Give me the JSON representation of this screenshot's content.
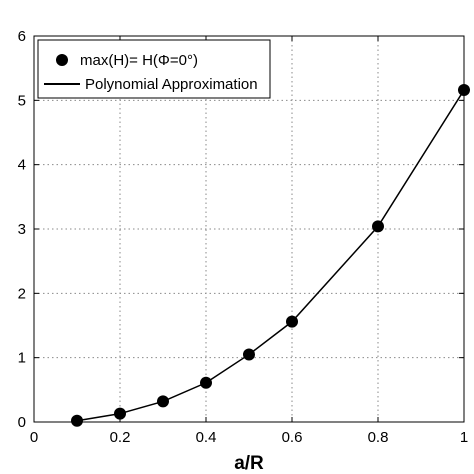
{
  "chart_data": {
    "type": "line",
    "title": "",
    "xlabel": "a/R",
    "ylabel": "",
    "xlim": [
      0,
      1
    ],
    "ylim": [
      0,
      6
    ],
    "xticks": [
      0,
      0.2,
      0.4,
      0.6,
      0.8,
      1
    ],
    "xtick_labels": [
      "0",
      "0.2",
      "0.4",
      "0.6",
      "0.8",
      "1"
    ],
    "yticks": [
      0,
      1,
      2,
      3,
      4,
      5,
      6
    ],
    "ytick_labels": [
      "0",
      "1",
      "2",
      "3",
      "4",
      "5",
      "6"
    ],
    "grid": true,
    "legend_position": "top-left",
    "series": [
      {
        "name": "max(H)= H(Φ=0°)",
        "style": "markers",
        "marker": "filled-circle",
        "color": "#000000",
        "x": [
          0.1,
          0.2,
          0.3,
          0.4,
          0.5,
          0.6,
          0.8,
          1.0
        ],
        "y": [
          0.02,
          0.13,
          0.32,
          0.61,
          1.05,
          1.56,
          3.04,
          5.16
        ]
      },
      {
        "name": "Polynomial Approximation",
        "style": "line",
        "color": "#000000",
        "x": [
          0.1,
          0.2,
          0.3,
          0.4,
          0.5,
          0.6,
          0.8,
          1.0
        ],
        "y": [
          0.02,
          0.13,
          0.32,
          0.61,
          1.05,
          1.56,
          3.04,
          5.16
        ]
      }
    ]
  }
}
